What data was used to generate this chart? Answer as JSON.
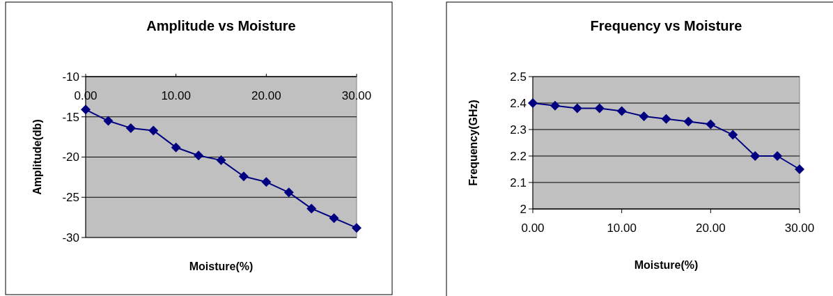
{
  "chart_data": [
    {
      "type": "line",
      "title": "Amplitude vs Moisture",
      "xlabel": "Moisture(%)",
      "ylabel": "Amplitude(db)",
      "x": [
        0,
        2.5,
        5,
        7.5,
        10,
        12.5,
        15,
        17.5,
        20,
        22.5,
        25,
        27.5,
        30
      ],
      "series": [
        {
          "color": "#000080",
          "values": [
            -14.1,
            -15.5,
            -16.4,
            -16.7,
            -18.8,
            -19.8,
            -20.4,
            -22.4,
            -23.1,
            -24.4,
            -26.4,
            -27.6,
            -28.8
          ]
        }
      ],
      "xlim": [
        0,
        30
      ],
      "xticks": [
        {
          "value": 0,
          "label": "0.00"
        },
        {
          "value": 10,
          "label": "10.00"
        },
        {
          "value": 20,
          "label": "20.00"
        },
        {
          "value": 30,
          "label": "30.00"
        }
      ],
      "ylim": [
        -30,
        -10
      ],
      "yticks": [
        -30,
        -25,
        -20,
        -15,
        -10
      ],
      "grid": "y",
      "marker": "diamond",
      "line_style": "solid"
    },
    {
      "type": "line",
      "title": "Frequency vs Moisture",
      "xlabel": "Moisture(%)",
      "ylabel": "Frequency(GHz)",
      "x": [
        0,
        2.5,
        5,
        7.5,
        10,
        12.5,
        15,
        17.5,
        20,
        22.5,
        25,
        27.5,
        30
      ],
      "series": [
        {
          "color": "#000080",
          "values": [
            2.4,
            2.39,
            2.38,
            2.38,
            2.37,
            2.35,
            2.34,
            2.33,
            2.32,
            2.28,
            2.2,
            2.2,
            2.15
          ]
        }
      ],
      "xlim": [
        0,
        30
      ],
      "xticks": [
        {
          "value": 0,
          "label": "0.00"
        },
        {
          "value": 10,
          "label": "10.00"
        },
        {
          "value": 20,
          "label": "20.00"
        },
        {
          "value": 30,
          "label": "30.00"
        }
      ],
      "ylim": [
        2,
        2.5
      ],
      "yticks": [
        2,
        2.1,
        2.2,
        2.3,
        2.4,
        2.5
      ],
      "grid": "y",
      "marker": "diamond",
      "line_style": "solid"
    }
  ]
}
